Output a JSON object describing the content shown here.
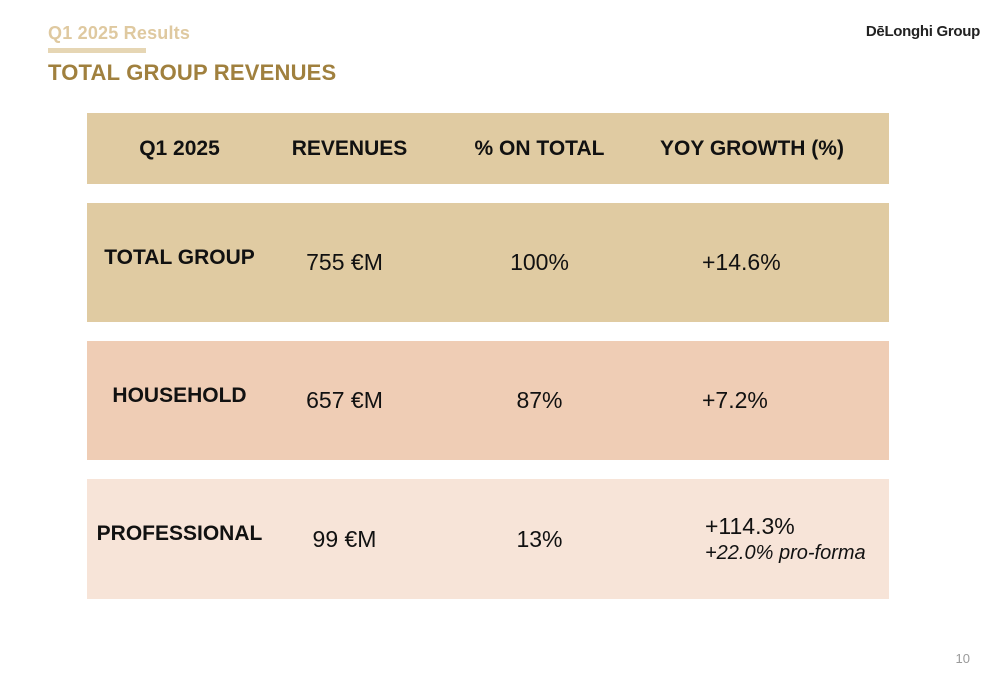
{
  "header": {
    "kicker": "Q1 2025 Results",
    "title": "TOTAL GROUP REVENUES",
    "logo": "DēLonghi Group"
  },
  "table": {
    "columns": [
      "Q1 2025",
      "REVENUES",
      "% ON TOTAL",
      "YOY GROWTH  (%)"
    ],
    "rows": [
      {
        "segment": "TOTAL GROUP",
        "revenues": "755 €M",
        "share": "100%",
        "growth": "+14.6%",
        "note": ""
      },
      {
        "segment": "HOUSEHOLD",
        "revenues": "657 €M",
        "share": "87%",
        "growth": "+7.2%",
        "note": ""
      },
      {
        "segment": "PROFESSIONAL",
        "revenues": "99 €M",
        "share": "13%",
        "growth": "+114.3%",
        "note": "+22.0% pro-forma"
      }
    ]
  },
  "footer": {
    "page_number": "10"
  },
  "colors": {
    "accent_gold": "#a0803e",
    "header_band": "#e0cba2",
    "total_group_band": "#e0cba2",
    "household_band": "#efcdb5",
    "professional_band": "#f7e4d8"
  }
}
